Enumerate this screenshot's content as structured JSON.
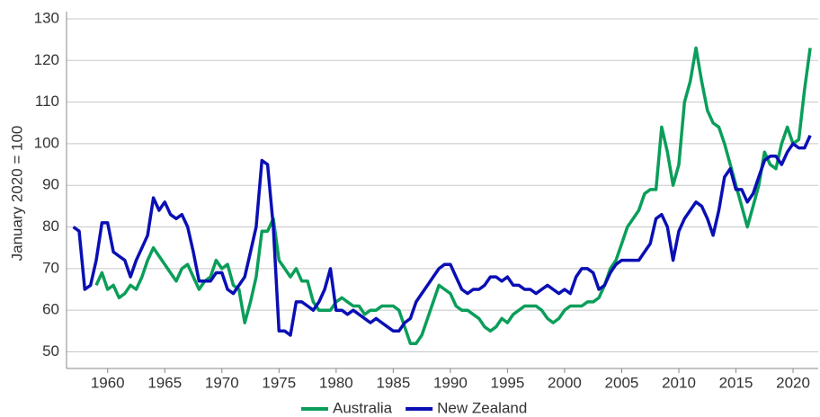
{
  "chart_data": {
    "type": "line",
    "y_label": "January 2020 = 100",
    "x": [
      1957,
      1957.5,
      1958,
      1958.5,
      1959,
      1959.5,
      1960,
      1960.5,
      1961,
      1961.5,
      1962,
      1962.5,
      1963,
      1963.5,
      1964,
      1964.5,
      1965,
      1965.5,
      1966,
      1966.5,
      1967,
      1967.5,
      1968,
      1968.5,
      1969,
      1969.5,
      1970,
      1970.5,
      1971,
      1971.5,
      1972,
      1972.5,
      1973,
      1973.5,
      1974,
      1974.5,
      1975,
      1975.5,
      1976,
      1976.5,
      1977,
      1977.5,
      1978,
      1978.5,
      1979,
      1979.5,
      1980,
      1980.5,
      1981,
      1981.5,
      1982,
      1982.5,
      1983,
      1983.5,
      1984,
      1984.5,
      1985,
      1985.5,
      1986,
      1986.5,
      1987,
      1987.5,
      1988,
      1988.5,
      1989,
      1989.5,
      1990,
      1990.5,
      1991,
      1991.5,
      1992,
      1992.5,
      1993,
      1993.5,
      1994,
      1994.5,
      1995,
      1995.5,
      1996,
      1996.5,
      1997,
      1997.5,
      1998,
      1998.5,
      1999,
      1999.5,
      2000,
      2000.5,
      2001,
      2001.5,
      2002,
      2002.5,
      2003,
      2003.5,
      2004,
      2004.5,
      2005,
      2005.5,
      2006,
      2006.5,
      2007,
      2007.5,
      2008,
      2008.5,
      2009,
      2009.5,
      2010,
      2010.5,
      2011,
      2011.5,
      2012,
      2012.5,
      2013,
      2013.5,
      2014,
      2014.5,
      2015,
      2015.5,
      2016,
      2016.5,
      2017,
      2017.5,
      2018,
      2018.5,
      2019,
      2019.5,
      2020,
      2020.5,
      2021,
      2021.5
    ],
    "series": [
      {
        "name": "Australia",
        "color": "#0a9e5a",
        "values": [
          null,
          null,
          null,
          null,
          66,
          69,
          65,
          66,
          63,
          64,
          66,
          65,
          68,
          72,
          75,
          73,
          71,
          69,
          67,
          70,
          71,
          68,
          65,
          67,
          68,
          72,
          70,
          71,
          66,
          65,
          57,
          62,
          68,
          79,
          79,
          82,
          72,
          70,
          68,
          70,
          67,
          67,
          62,
          60,
          60,
          60,
          62,
          63,
          62,
          61,
          61,
          59,
          60,
          60,
          61,
          61,
          61,
          60,
          56,
          52,
          52,
          54,
          58,
          62,
          66,
          65,
          64,
          61,
          60,
          60,
          59,
          58,
          56,
          55,
          56,
          58,
          57,
          59,
          60,
          61,
          61,
          61,
          60,
          58,
          57,
          58,
          60,
          61,
          61,
          61,
          62,
          62,
          63,
          66,
          70,
          72,
          76,
          80,
          82,
          84,
          88,
          89,
          89,
          104,
          98,
          90,
          95,
          110,
          115,
          123,
          115,
          108,
          105,
          104,
          100,
          95,
          90,
          85,
          80,
          85,
          90,
          98,
          95,
          94,
          100,
          104,
          100,
          101,
          113,
          123
        ]
      },
      {
        "name": "New Zealand",
        "color": "#0a0fb4",
        "values": [
          80,
          79,
          65,
          66,
          72,
          81,
          81,
          74,
          73,
          72,
          68,
          72,
          75,
          78,
          87,
          84,
          86,
          83,
          82,
          83,
          80,
          74,
          67,
          67,
          67,
          69,
          69,
          65,
          64,
          66,
          68,
          74,
          80,
          96,
          95,
          80,
          55,
          55,
          54,
          62,
          62,
          61,
          60,
          62,
          65,
          70,
          60,
          60,
          59,
          60,
          59,
          58,
          57,
          58,
          57,
          56,
          55,
          55,
          57,
          58,
          62,
          64,
          66,
          68,
          70,
          71,
          71,
          68,
          65,
          64,
          65,
          65,
          66,
          68,
          68,
          67,
          68,
          66,
          66,
          65,
          65,
          64,
          65,
          66,
          65,
          64,
          65,
          64,
          68,
          70,
          70,
          69,
          65,
          66,
          69,
          71,
          72,
          72,
          72,
          72,
          74,
          76,
          82,
          83,
          80,
          72,
          79,
          82,
          84,
          86,
          85,
          82,
          78,
          84,
          92,
          94,
          89,
          89,
          86,
          88,
          92,
          96,
          97,
          97,
          95,
          98,
          100,
          99,
          99,
          102
        ]
      }
    ],
    "xlim": [
      1956.4,
      2022.2
    ],
    "xticks": [
      1960,
      1965,
      1970,
      1975,
      1980,
      1985,
      1990,
      1995,
      2000,
      2005,
      2010,
      2015,
      2020
    ],
    "ylim": [
      46,
      130
    ],
    "yticks": [
      50,
      60,
      70,
      80,
      90,
      100,
      110,
      120,
      130
    ],
    "grid": true,
    "legend": "bottom"
  }
}
